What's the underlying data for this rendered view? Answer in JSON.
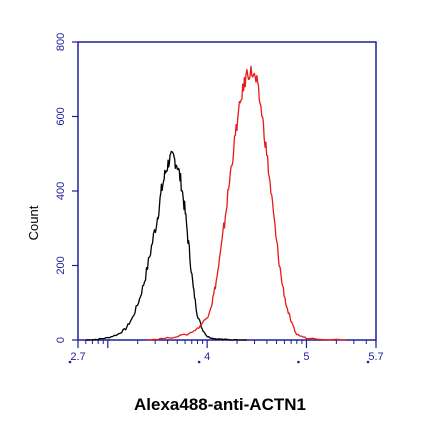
{
  "chart_data": {
    "type": "line",
    "xlabel": "Alexa488-anti-ACTN1",
    "ylabel": "Count",
    "xlim": [
      2.7,
      5.7
    ],
    "ylim": [
      0,
      800
    ],
    "x_scale": "log10",
    "x_tick_labels": [
      {
        "value": 2.7,
        "label": "2.7"
      },
      {
        "value": 4,
        "label": "4"
      },
      {
        "value": 5,
        "label": "5"
      },
      {
        "value": 5.7,
        "label": "5.7"
      }
    ],
    "y_ticks": [
      0,
      200,
      400,
      600,
      800
    ],
    "grid": false,
    "series": [
      {
        "color": "#000000",
        "x": [
          2.78,
          2.9,
          3.0,
          3.1,
          3.18,
          3.25,
          3.32,
          3.38,
          3.44,
          3.5,
          3.54,
          3.58,
          3.62,
          3.66,
          3.7,
          3.74,
          3.78,
          3.82,
          3.86,
          3.9,
          3.95,
          4.0,
          4.05,
          4.1,
          4.2,
          4.3,
          4.4
        ],
        "y": [
          0,
          2,
          6,
          15,
          30,
          60,
          110,
          170,
          250,
          330,
          400,
          450,
          485,
          490,
          470,
          420,
          340,
          240,
          140,
          70,
          30,
          10,
          5,
          3,
          1,
          0,
          0
        ]
      },
      {
        "color": "#e41a1c",
        "x": [
          3.4,
          3.6,
          3.8,
          3.9,
          4.0,
          4.05,
          4.1,
          4.15,
          4.2,
          4.25,
          4.3,
          4.35,
          4.4,
          4.45,
          4.5,
          4.55,
          4.6,
          4.65,
          4.7,
          4.75,
          4.8,
          4.85,
          4.9,
          5.0,
          5.2,
          5.4
        ],
        "y": [
          0,
          5,
          15,
          30,
          60,
          100,
          170,
          260,
          370,
          480,
          580,
          660,
          715,
          720,
          690,
          610,
          500,
          380,
          260,
          160,
          90,
          45,
          15,
          5,
          2,
          0
        ]
      }
    ]
  }
}
